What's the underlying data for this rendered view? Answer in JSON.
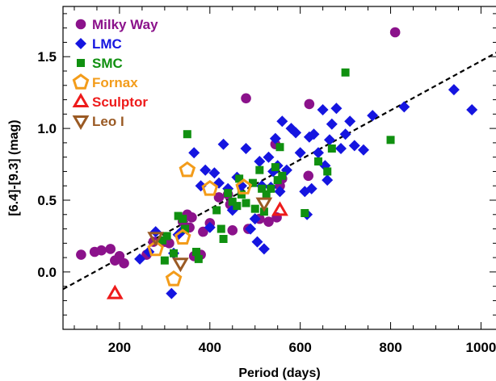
{
  "chart_data": {
    "type": "scatter",
    "xlabel": "Period (days)",
    "ylabel": "[6.4]-[9.3] (mag)",
    "xlim": [
      75,
      1035
    ],
    "ylim": [
      -0.4,
      1.85
    ],
    "xticks": [
      200,
      400,
      600,
      800,
      1000
    ],
    "yticks": [
      0.0,
      0.5,
      1.0,
      1.5
    ],
    "ytick_labels": [
      "0.0",
      "0.5",
      "1.0",
      "1.5"
    ],
    "legend_position": "top-left",
    "fit_line": {
      "style": "dashed",
      "color": "#000000",
      "points": [
        [
          75,
          -0.12
        ],
        [
          1035,
          1.53
        ]
      ]
    },
    "series": [
      {
        "name": "Milky Way",
        "marker": "circle",
        "color": "#8b128b",
        "filled": true,
        "points": [
          [
            115,
            0.12
          ],
          [
            145,
            0.14
          ],
          [
            160,
            0.15
          ],
          [
            180,
            0.16
          ],
          [
            190,
            0.08
          ],
          [
            200,
            0.11
          ],
          [
            210,
            0.06
          ],
          [
            260,
            0.12
          ],
          [
            275,
            0.21
          ],
          [
            300,
            0.21
          ],
          [
            310,
            0.2
          ],
          [
            340,
            0.35
          ],
          [
            350,
            0.4
          ],
          [
            355,
            0.31
          ],
          [
            360,
            0.38
          ],
          [
            365,
            0.11
          ],
          [
            380,
            0.12
          ],
          [
            385,
            0.28
          ],
          [
            400,
            0.34
          ],
          [
            420,
            0.52
          ],
          [
            440,
            0.54
          ],
          [
            445,
            0.47
          ],
          [
            450,
            0.29
          ],
          [
            480,
            1.21
          ],
          [
            485,
            0.3
          ],
          [
            510,
            0.37
          ],
          [
            530,
            0.35
          ],
          [
            545,
            0.89
          ],
          [
            548,
            0.38
          ],
          [
            555,
            0.6
          ],
          [
            560,
            0.65
          ],
          [
            620,
            1.17
          ],
          [
            618,
            0.67
          ],
          [
            810,
            1.67
          ]
        ]
      },
      {
        "name": "LMC",
        "marker": "diamond",
        "color": "#1515e0",
        "filled": true,
        "points": [
          [
            245,
            0.09
          ],
          [
            265,
            0.14
          ],
          [
            280,
            0.28
          ],
          [
            315,
            -0.15
          ],
          [
            320,
            0.13
          ],
          [
            330,
            0.26
          ],
          [
            340,
            0.29
          ],
          [
            365,
            0.83
          ],
          [
            380,
            0.6
          ],
          [
            390,
            0.71
          ],
          [
            400,
            0.31
          ],
          [
            410,
            0.69
          ],
          [
            420,
            0.62
          ],
          [
            430,
            0.89
          ],
          [
            440,
            0.58
          ],
          [
            450,
            0.43
          ],
          [
            460,
            0.66
          ],
          [
            470,
            0.6
          ],
          [
            480,
            0.86
          ],
          [
            490,
            0.3
          ],
          [
            500,
            0.37
          ],
          [
            505,
            0.21
          ],
          [
            510,
            0.77
          ],
          [
            515,
            0.6
          ],
          [
            520,
            0.16
          ],
          [
            530,
            0.8
          ],
          [
            535,
            0.59
          ],
          [
            540,
            0.7
          ],
          [
            545,
            0.93
          ],
          [
            550,
            0.74
          ],
          [
            555,
            0.56
          ],
          [
            560,
            1.05
          ],
          [
            570,
            0.71
          ],
          [
            580,
            1.0
          ],
          [
            590,
            0.97
          ],
          [
            600,
            0.83
          ],
          [
            610,
            0.56
          ],
          [
            615,
            0.4
          ],
          [
            620,
            0.94
          ],
          [
            625,
            0.58
          ],
          [
            630,
            0.96
          ],
          [
            640,
            0.83
          ],
          [
            650,
            1.13
          ],
          [
            655,
            0.74
          ],
          [
            660,
            0.64
          ],
          [
            665,
            0.92
          ],
          [
            670,
            1.03
          ],
          [
            680,
            1.14
          ],
          [
            690,
            0.86
          ],
          [
            700,
            0.96
          ],
          [
            710,
            1.05
          ],
          [
            720,
            0.88
          ],
          [
            740,
            0.85
          ],
          [
            760,
            1.09
          ],
          [
            830,
            1.15
          ],
          [
            940,
            1.27
          ],
          [
            980,
            1.13
          ]
        ]
      },
      {
        "name": "SMC",
        "marker": "square",
        "color": "#109010",
        "filled": true,
        "points": [
          [
            295,
            0.22
          ],
          [
            300,
            0.08
          ],
          [
            305,
            0.25
          ],
          [
            320,
            0.13
          ],
          [
            330,
            0.39
          ],
          [
            340,
            0.37
          ],
          [
            345,
            0.3
          ],
          [
            350,
            0.96
          ],
          [
            370,
            0.14
          ],
          [
            375,
            0.09
          ],
          [
            415,
            0.43
          ],
          [
            425,
            0.3
          ],
          [
            430,
            0.23
          ],
          [
            440,
            0.55
          ],
          [
            450,
            0.49
          ],
          [
            460,
            0.46
          ],
          [
            465,
            0.65
          ],
          [
            470,
            0.54
          ],
          [
            480,
            0.48
          ],
          [
            495,
            0.62
          ],
          [
            500,
            0.44
          ],
          [
            510,
            0.71
          ],
          [
            515,
            0.58
          ],
          [
            520,
            0.42
          ],
          [
            525,
            0.54
          ],
          [
            535,
            0.58
          ],
          [
            545,
            0.73
          ],
          [
            550,
            0.64
          ],
          [
            555,
            0.87
          ],
          [
            560,
            0.67
          ],
          [
            610,
            0.41
          ],
          [
            640,
            0.77
          ],
          [
            660,
            0.7
          ],
          [
            670,
            0.86
          ],
          [
            700,
            1.39
          ],
          [
            800,
            0.92
          ]
        ]
      },
      {
        "name": "Fornax",
        "marker": "pentagon",
        "color": "#f39c1a",
        "filled": false,
        "points": [
          [
            280,
            0.16
          ],
          [
            320,
            -0.05
          ],
          [
            340,
            0.24
          ],
          [
            350,
            0.71
          ],
          [
            400,
            0.58
          ],
          [
            475,
            0.59
          ]
        ]
      },
      {
        "name": "Sculptor",
        "marker": "triangle-up",
        "color": "#ee1b1b",
        "filled": false,
        "points": [
          [
            190,
            -0.15
          ],
          [
            555,
            0.43
          ]
        ]
      },
      {
        "name": "Leo I",
        "marker": "triangle-down",
        "color": "#9a5a24",
        "filled": false,
        "points": [
          [
            280,
            0.24
          ],
          [
            335,
            0.06
          ],
          [
            520,
            0.48
          ]
        ]
      }
    ]
  }
}
